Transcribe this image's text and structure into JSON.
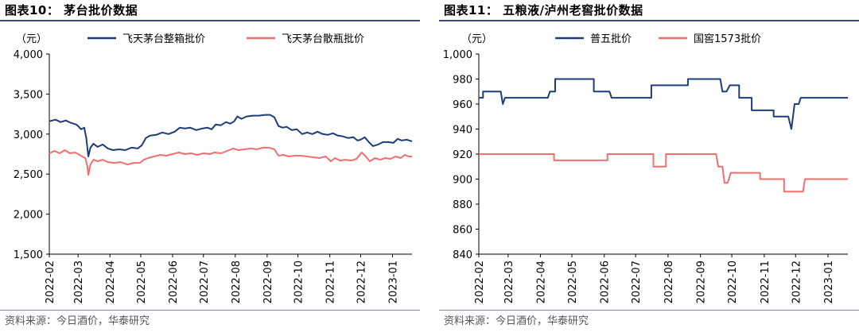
{
  "chart_data": [
    {
      "type": "line",
      "title": "图表10：  茅台批价数据",
      "unit": "（元）",
      "ylim": [
        1500,
        4000
      ],
      "yticks": [
        "1,500",
        "2,000",
        "2,500",
        "3,000",
        "3,500",
        "4,000"
      ],
      "ytick_values": [
        1500,
        2000,
        2500,
        3000,
        3500,
        4000
      ],
      "xticks": [
        "2022-02",
        "2022-03",
        "2022-04",
        "2022-05",
        "2022-06",
        "2022-07",
        "2022-08",
        "2022-09",
        "2022-10",
        "2022-11",
        "2022-12",
        "2023-01"
      ],
      "xlim": [
        "2022-02-01",
        "2023-01-20"
      ],
      "legend_position": "top",
      "grid": false,
      "series": [
        {
          "name": "飞天茅台整箱批价",
          "color": "#1f3c7a",
          "points": [
            [
              "2022-02-01",
              3160
            ],
            [
              "2022-02-07",
              3180
            ],
            [
              "2022-02-12",
              3150
            ],
            [
              "2022-02-17",
              3170
            ],
            [
              "2022-02-22",
              3140
            ],
            [
              "2022-02-27",
              3120
            ],
            [
              "2022-03-01",
              3100
            ],
            [
              "2022-03-04",
              3060
            ],
            [
              "2022-03-07",
              3080
            ],
            [
              "2022-03-09",
              2950
            ],
            [
              "2022-03-11",
              2720
            ],
            [
              "2022-03-13",
              2830
            ],
            [
              "2022-03-16",
              2880
            ],
            [
              "2022-03-20",
              2840
            ],
            [
              "2022-03-25",
              2870
            ],
            [
              "2022-03-30",
              2820
            ],
            [
              "2022-04-04",
              2800
            ],
            [
              "2022-04-10",
              2810
            ],
            [
              "2022-04-16",
              2800
            ],
            [
              "2022-04-22",
              2830
            ],
            [
              "2022-04-28",
              2820
            ],
            [
              "2022-05-02",
              2860
            ],
            [
              "2022-05-06",
              2950
            ],
            [
              "2022-05-10",
              2980
            ],
            [
              "2022-05-16",
              2990
            ],
            [
              "2022-05-22",
              3020
            ],
            [
              "2022-05-28",
              3000
            ],
            [
              "2022-06-03",
              3030
            ],
            [
              "2022-06-08",
              3080
            ],
            [
              "2022-06-13",
              3070
            ],
            [
              "2022-06-18",
              3080
            ],
            [
              "2022-06-24",
              3050
            ],
            [
              "2022-06-30",
              3070
            ],
            [
              "2022-07-05",
              3080
            ],
            [
              "2022-07-09",
              3060
            ],
            [
              "2022-07-13",
              3120
            ],
            [
              "2022-07-18",
              3110
            ],
            [
              "2022-07-23",
              3150
            ],
            [
              "2022-07-27",
              3130
            ],
            [
              "2022-07-31",
              3160
            ],
            [
              "2022-08-03",
              3220
            ],
            [
              "2022-08-07",
              3190
            ],
            [
              "2022-08-12",
              3220
            ],
            [
              "2022-08-18",
              3230
            ],
            [
              "2022-08-24",
              3230
            ],
            [
              "2022-08-30",
              3240
            ],
            [
              "2022-09-04",
              3240
            ],
            [
              "2022-09-08",
              3210
            ],
            [
              "2022-09-12",
              3100
            ],
            [
              "2022-09-16",
              3080
            ],
            [
              "2022-09-20",
              3090
            ],
            [
              "2022-09-25",
              3050
            ],
            [
              "2022-09-30",
              3060
            ],
            [
              "2022-10-05",
              3000
            ],
            [
              "2022-10-10",
              3020
            ],
            [
              "2022-10-15",
              3000
            ],
            [
              "2022-10-20",
              3030
            ],
            [
              "2022-10-25",
              3000
            ],
            [
              "2022-10-30",
              2990
            ],
            [
              "2022-11-04",
              3010
            ],
            [
              "2022-11-09",
              2980
            ],
            [
              "2022-11-14",
              2970
            ],
            [
              "2022-11-19",
              2950
            ],
            [
              "2022-11-24",
              2960
            ],
            [
              "2022-11-28",
              2920
            ],
            [
              "2022-12-01",
              2930
            ],
            [
              "2022-12-05",
              2960
            ],
            [
              "2022-12-09",
              2900
            ],
            [
              "2022-12-13",
              2850
            ],
            [
              "2022-12-18",
              2870
            ],
            [
              "2022-12-23",
              2900
            ],
            [
              "2022-12-28",
              2900
            ],
            [
              "2023-01-02",
              2890
            ],
            [
              "2023-01-06",
              2940
            ],
            [
              "2023-01-10",
              2920
            ],
            [
              "2023-01-15",
              2930
            ],
            [
              "2023-01-20",
              2910
            ]
          ]
        },
        {
          "name": "飞天茅台散瓶批价",
          "color": "#f26f6f",
          "points": [
            [
              "2022-02-01",
              2760
            ],
            [
              "2022-02-06",
              2790
            ],
            [
              "2022-02-11",
              2760
            ],
            [
              "2022-02-16",
              2800
            ],
            [
              "2022-02-21",
              2760
            ],
            [
              "2022-02-26",
              2770
            ],
            [
              "2022-03-01",
              2750
            ],
            [
              "2022-03-05",
              2720
            ],
            [
              "2022-03-08",
              2700
            ],
            [
              "2022-03-10",
              2600
            ],
            [
              "2022-03-11",
              2490
            ],
            [
              "2022-03-13",
              2620
            ],
            [
              "2022-03-16",
              2680
            ],
            [
              "2022-03-20",
              2660
            ],
            [
              "2022-03-25",
              2680
            ],
            [
              "2022-03-30",
              2650
            ],
            [
              "2022-04-05",
              2640
            ],
            [
              "2022-04-11",
              2650
            ],
            [
              "2022-04-18",
              2620
            ],
            [
              "2022-04-24",
              2640
            ],
            [
              "2022-04-30",
              2640
            ],
            [
              "2022-05-04",
              2680
            ],
            [
              "2022-05-08",
              2700
            ],
            [
              "2022-05-14",
              2720
            ],
            [
              "2022-05-20",
              2740
            ],
            [
              "2022-05-26",
              2730
            ],
            [
              "2022-06-01",
              2750
            ],
            [
              "2022-06-07",
              2770
            ],
            [
              "2022-06-13",
              2750
            ],
            [
              "2022-06-19",
              2760
            ],
            [
              "2022-06-25",
              2740
            ],
            [
              "2022-07-01",
              2760
            ],
            [
              "2022-07-07",
              2750
            ],
            [
              "2022-07-12",
              2770
            ],
            [
              "2022-07-18",
              2760
            ],
            [
              "2022-07-24",
              2790
            ],
            [
              "2022-07-30",
              2820
            ],
            [
              "2022-08-04",
              2800
            ],
            [
              "2022-08-10",
              2810
            ],
            [
              "2022-08-16",
              2820
            ],
            [
              "2022-08-22",
              2810
            ],
            [
              "2022-08-28",
              2830
            ],
            [
              "2022-09-03",
              2830
            ],
            [
              "2022-09-08",
              2810
            ],
            [
              "2022-09-12",
              2730
            ],
            [
              "2022-09-17",
              2740
            ],
            [
              "2022-09-22",
              2720
            ],
            [
              "2022-09-28",
              2730
            ],
            [
              "2022-10-04",
              2730
            ],
            [
              "2022-10-10",
              2720
            ],
            [
              "2022-10-16",
              2710
            ],
            [
              "2022-10-22",
              2700
            ],
            [
              "2022-10-28",
              2720
            ],
            [
              "2022-11-02",
              2660
            ],
            [
              "2022-11-06",
              2700
            ],
            [
              "2022-11-11",
              2670
            ],
            [
              "2022-11-16",
              2680
            ],
            [
              "2022-11-22",
              2670
            ],
            [
              "2022-11-27",
              2690
            ],
            [
              "2022-12-02",
              2770
            ],
            [
              "2022-12-06",
              2720
            ],
            [
              "2022-12-10",
              2660
            ],
            [
              "2022-12-15",
              2700
            ],
            [
              "2022-12-20",
              2680
            ],
            [
              "2022-12-25",
              2700
            ],
            [
              "2022-12-30",
              2690
            ],
            [
              "2023-01-04",
              2720
            ],
            [
              "2023-01-09",
              2700
            ],
            [
              "2023-01-13",
              2740
            ],
            [
              "2023-01-17",
              2720
            ],
            [
              "2023-01-20",
              2720
            ]
          ]
        }
      ]
    },
    {
      "type": "line",
      "title": "图表11：  五粮液/泸州老窖批价数据",
      "unit": "（元）",
      "ylim": [
        840,
        1000
      ],
      "yticks": [
        "840",
        "860",
        "880",
        "900",
        "920",
        "940",
        "960",
        "980",
        "1,000"
      ],
      "ytick_values": [
        840,
        860,
        880,
        900,
        920,
        940,
        960,
        980,
        1000
      ],
      "xticks": [
        "2022-02",
        "2022-03",
        "2022-04",
        "2022-05",
        "2022-06",
        "2022-07",
        "2022-08",
        "2022-09",
        "2022-10",
        "2022-11",
        "2022-12",
        "2023-01"
      ],
      "xlim": [
        "2022-02-01",
        "2023-01-20"
      ],
      "legend_position": "top",
      "grid": false,
      "series": [
        {
          "name": "普五批价",
          "color": "#1f3c7a",
          "points": [
            [
              "2022-02-01",
              965
            ],
            [
              "2022-02-05",
              965
            ],
            [
              "2022-02-05",
              970
            ],
            [
              "2022-02-22",
              970
            ],
            [
              "2022-02-24",
              960
            ],
            [
              "2022-02-26",
              965
            ],
            [
              "2022-04-08",
              965
            ],
            [
              "2022-04-10",
              970
            ],
            [
              "2022-04-15",
              970
            ],
            [
              "2022-04-15",
              980
            ],
            [
              "2022-05-22",
              980
            ],
            [
              "2022-05-22",
              970
            ],
            [
              "2022-06-06",
              970
            ],
            [
              "2022-06-08",
              965
            ],
            [
              "2022-07-16",
              965
            ],
            [
              "2022-07-16",
              975
            ],
            [
              "2022-08-20",
              975
            ],
            [
              "2022-08-20",
              980
            ],
            [
              "2022-09-20",
              980
            ],
            [
              "2022-09-22",
              970
            ],
            [
              "2022-09-26",
              970
            ],
            [
              "2022-09-29",
              975
            ],
            [
              "2022-10-08",
              975
            ],
            [
              "2022-10-08",
              965
            ],
            [
              "2022-10-20",
              965
            ],
            [
              "2022-10-20",
              955
            ],
            [
              "2022-11-10",
              955
            ],
            [
              "2022-11-10",
              950
            ],
            [
              "2022-11-24",
              950
            ],
            [
              "2022-11-27",
              940
            ],
            [
              "2022-11-30",
              960
            ],
            [
              "2022-12-04",
              960
            ],
            [
              "2022-12-06",
              965
            ],
            [
              "2023-01-20",
              965
            ]
          ]
        },
        {
          "name": "国窖1573批价",
          "color": "#f26f6f",
          "points": [
            [
              "2022-02-01",
              920
            ],
            [
              "2022-04-14",
              920
            ],
            [
              "2022-04-14",
              915
            ],
            [
              "2022-06-04",
              915
            ],
            [
              "2022-06-04",
              920
            ],
            [
              "2022-07-18",
              920
            ],
            [
              "2022-07-18",
              910
            ],
            [
              "2022-07-30",
              910
            ],
            [
              "2022-07-30",
              920
            ],
            [
              "2022-09-16",
              920
            ],
            [
              "2022-09-18",
              910
            ],
            [
              "2022-09-22",
              910
            ],
            [
              "2022-09-24",
              897
            ],
            [
              "2022-09-27",
              897
            ],
            [
              "2022-09-30",
              905
            ],
            [
              "2022-10-28",
              905
            ],
            [
              "2022-10-28",
              900
            ],
            [
              "2022-11-20",
              900
            ],
            [
              "2022-11-20",
              890
            ],
            [
              "2022-12-08",
              890
            ],
            [
              "2022-12-10",
              900
            ],
            [
              "2023-01-20",
              900
            ]
          ]
        }
      ]
    }
  ],
  "source_left": "资料来源：今日酒价，华泰研究",
  "source_right": "资料来源：今日酒价，华泰研究"
}
